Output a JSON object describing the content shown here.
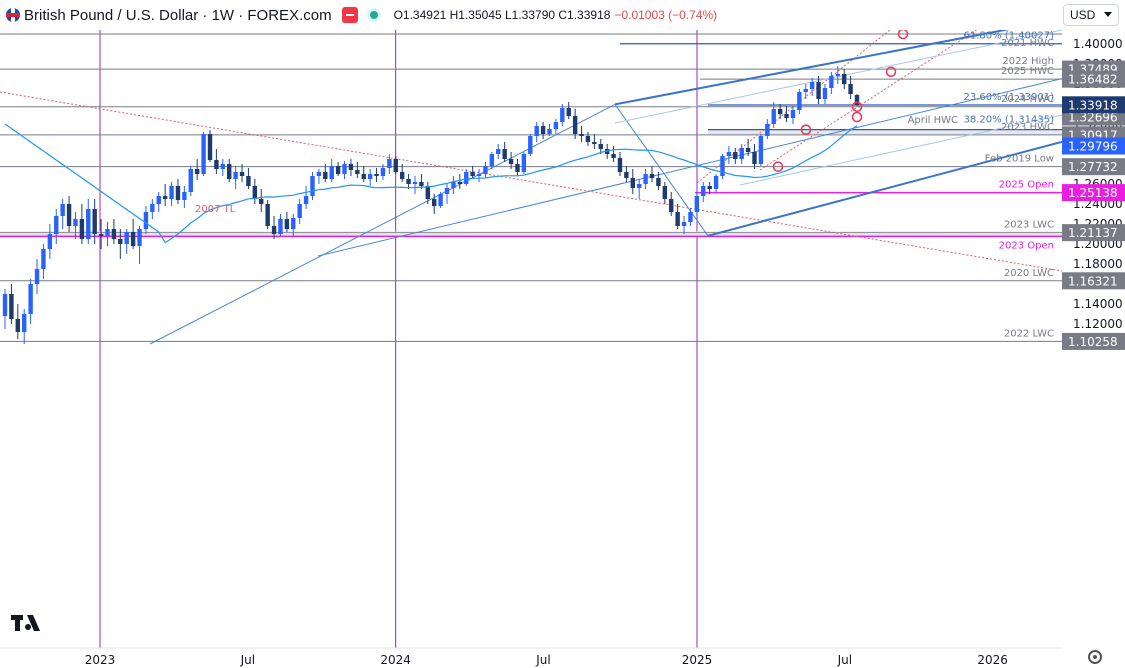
{
  "header": {
    "title": "British Pound / U.S. Dollar · 1W · FOREX.com",
    "ohlc": "O1.34921 H1.35045 L1.33790 C1.33918",
    "change": "−0.01003 (−0.74%)"
  },
  "currency_selector": "USD",
  "chart_data": {
    "type": "candlestick",
    "symbol": "GBPUSD",
    "timeframe": "1W",
    "y_axis": {
      "ylim": [
        1.098,
        1.416
      ],
      "ticks": [
        "1.40000",
        "1.38000",
        "1.36000",
        "1.34000",
        "1.32000",
        "1.30000",
        "1.28000",
        "1.26000",
        "1.24000",
        "1.22000",
        "1.20000",
        "1.18000",
        "1.16000",
        "1.14000",
        "1.12000"
      ],
      "tick_values": [
        1.4,
        1.38,
        1.36,
        1.34,
        1.32,
        1.3,
        1.28,
        1.26,
        1.24,
        1.22,
        1.2,
        1.18,
        1.16,
        1.14,
        1.12
      ]
    },
    "x_axis": {
      "labels": [
        {
          "text": "2023",
          "date": "2023-01-02"
        },
        {
          "text": "Jul",
          "date": "2023-07-03"
        },
        {
          "text": "2024",
          "date": "2024-01-01"
        },
        {
          "text": "Jul",
          "date": "2024-07-01"
        },
        {
          "text": "2025",
          "date": "2025-01-06"
        },
        {
          "text": "Jul",
          "date": "2025-07-07"
        },
        {
          "text": "2026",
          "date": "2026-01-05"
        }
      ]
    },
    "year_dividers": [
      "2023-01-02",
      "2024-01-01",
      "2025-01-06"
    ],
    "horizontal_levels": [
      {
        "label": "2021 HWC",
        "value": 1.41,
        "price_tag": ""
      },
      {
        "label": "61.80% (1.40027)",
        "value": 1.40027,
        "price_tag": ""
      },
      {
        "label": "2022 High",
        "value": 1.37489,
        "price_tag": "1.37489"
      },
      {
        "label": "2025 HWC",
        "value": 1.36482,
        "price_tag": "1.36482"
      },
      {
        "label": "23.60% (1.33901)",
        "value": 1.33901,
        "price_tag": ""
      },
      {
        "label": "2024 HWC",
        "value": 1.33722,
        "price_tag": "1.33722"
      },
      {
        "label": "April HWC",
        "value": 1.32696,
        "price_tag": "1.32696"
      },
      {
        "label": "38.20% (1.31435)",
        "value": 1.31435,
        "price_tag": ""
      },
      {
        "label": "2023 HWC",
        "value": 1.30917,
        "price_tag": "1.30917"
      },
      {
        "label": "Feb 2019 Low",
        "value": 1.27732,
        "price_tag": "1.27732"
      },
      {
        "label": "2025 Open",
        "value": 1.25138,
        "price_tag": "1.25138"
      },
      {
        "label": "2023 LWC",
        "value": 1.21137,
        "price_tag": "1.21137"
      },
      {
        "label": "2023 Open",
        "value": 1.2076,
        "price_tag": ""
      },
      {
        "label": "2020 LWC",
        "value": 1.16321,
        "price_tag": "1.16321"
      },
      {
        "label": "2022 LWC",
        "value": 1.10258,
        "price_tag": "1.10258"
      }
    ],
    "last_price": "1.33918",
    "ma_price": "1.29796",
    "trendline_label": "2007 TL",
    "colors": {
      "up": "#2962ff",
      "down": "#1e3a6e",
      "ma": "#2196f3",
      "magenta": "#e91ee0",
      "level": "#787b86",
      "channel": "#3b73c9",
      "trend": "#e05a6b",
      "purple": "#9c27b0"
    },
    "candles": [
      [
        1.128,
        1.155,
        1.115,
        1.15
      ],
      [
        1.15,
        1.16,
        1.12,
        1.125
      ],
      [
        1.125,
        1.14,
        1.105,
        1.112
      ],
      [
        1.112,
        1.135,
        1.1,
        1.13
      ],
      [
        1.13,
        1.165,
        1.12,
        1.16
      ],
      [
        1.16,
        1.185,
        1.15,
        1.175
      ],
      [
        1.175,
        1.2,
        1.165,
        1.195
      ],
      [
        1.195,
        1.22,
        1.185,
        1.21
      ],
      [
        1.21,
        1.235,
        1.2,
        1.228
      ],
      [
        1.228,
        1.245,
        1.215,
        1.24
      ],
      [
        1.24,
        1.248,
        1.212,
        1.218
      ],
      [
        1.218,
        1.232,
        1.205,
        1.225
      ],
      [
        1.225,
        1.24,
        1.2,
        1.205
      ],
      [
        1.205,
        1.245,
        1.2,
        1.235
      ],
      [
        1.235,
        1.245,
        1.2,
        1.21
      ],
      [
        1.21,
        1.225,
        1.195,
        1.208
      ],
      [
        1.208,
        1.222,
        1.198,
        1.215
      ],
      [
        1.215,
        1.225,
        1.2,
        1.205
      ],
      [
        1.205,
        1.215,
        1.185,
        1.2
      ],
      [
        1.2,
        1.215,
        1.19,
        1.212
      ],
      [
        1.212,
        1.225,
        1.195,
        1.198
      ],
      [
        1.198,
        1.218,
        1.18,
        1.215
      ],
      [
        1.215,
        1.238,
        1.21,
        1.232
      ],
      [
        1.232,
        1.245,
        1.225,
        1.24
      ],
      [
        1.24,
        1.252,
        1.232,
        1.248
      ],
      [
        1.248,
        1.26,
        1.238,
        1.245
      ],
      [
        1.245,
        1.262,
        1.238,
        1.258
      ],
      [
        1.258,
        1.265,
        1.24,
        1.244
      ],
      [
        1.244,
        1.258,
        1.236,
        1.252
      ],
      [
        1.252,
        1.278,
        1.248,
        1.275
      ],
      [
        1.275,
        1.285,
        1.264,
        1.27
      ],
      [
        1.27,
        1.312,
        1.268,
        1.31
      ],
      [
        1.31,
        1.314,
        1.282,
        1.284
      ],
      [
        1.284,
        1.295,
        1.27,
        1.275
      ],
      [
        1.275,
        1.285,
        1.268,
        1.28
      ],
      [
        1.28,
        1.285,
        1.262,
        1.265
      ],
      [
        1.265,
        1.278,
        1.255,
        1.272
      ],
      [
        1.272,
        1.28,
        1.262,
        1.268
      ],
      [
        1.268,
        1.276,
        1.255,
        1.258
      ],
      [
        1.258,
        1.265,
        1.24,
        1.245
      ],
      [
        1.245,
        1.255,
        1.232,
        1.24
      ],
      [
        1.24,
        1.244,
        1.215,
        1.218
      ],
      [
        1.218,
        1.228,
        1.205,
        1.21
      ],
      [
        1.21,
        1.23,
        1.208,
        1.225
      ],
      [
        1.225,
        1.232,
        1.212,
        1.215
      ],
      [
        1.215,
        1.23,
        1.208,
        1.226
      ],
      [
        1.226,
        1.245,
        1.22,
        1.24
      ],
      [
        1.24,
        1.258,
        1.235,
        1.248
      ],
      [
        1.248,
        1.272,
        1.244,
        1.268
      ],
      [
        1.268,
        1.275,
        1.26,
        1.272
      ],
      [
        1.272,
        1.28,
        1.262,
        1.265
      ],
      [
        1.265,
        1.285,
        1.262,
        1.278
      ],
      [
        1.278,
        1.282,
        1.268,
        1.27
      ],
      [
        1.27,
        1.283,
        1.265,
        1.28
      ],
      [
        1.28,
        1.285,
        1.268,
        1.274
      ],
      [
        1.274,
        1.282,
        1.266,
        1.27
      ],
      [
        1.27,
        1.278,
        1.262,
        1.265
      ],
      [
        1.265,
        1.275,
        1.258,
        1.27
      ],
      [
        1.27,
        1.276,
        1.262,
        1.268
      ],
      [
        1.268,
        1.28,
        1.264,
        1.276
      ],
      [
        1.276,
        1.29,
        1.27,
        1.285
      ],
      [
        1.285,
        1.288,
        1.27,
        1.272
      ],
      [
        1.272,
        1.28,
        1.262,
        1.265
      ],
      [
        1.265,
        1.27,
        1.255,
        1.26
      ],
      [
        1.26,
        1.268,
        1.25,
        1.262
      ],
      [
        1.262,
        1.27,
        1.255,
        1.258
      ],
      [
        1.258,
        1.262,
        1.24,
        1.245
      ],
      [
        1.245,
        1.25,
        1.23,
        1.238
      ],
      [
        1.238,
        1.252,
        1.236,
        1.25
      ],
      [
        1.25,
        1.26,
        1.24,
        1.256
      ],
      [
        1.256,
        1.268,
        1.25,
        1.262
      ],
      [
        1.262,
        1.27,
        1.255,
        1.26
      ],
      [
        1.26,
        1.275,
        1.258,
        1.272
      ],
      [
        1.272,
        1.278,
        1.265,
        1.268
      ],
      [
        1.268,
        1.275,
        1.262,
        1.27
      ],
      [
        1.27,
        1.282,
        1.266,
        1.278
      ],
      [
        1.278,
        1.292,
        1.275,
        1.29
      ],
      [
        1.29,
        1.3,
        1.285,
        1.295
      ],
      [
        1.295,
        1.302,
        1.282,
        1.285
      ],
      [
        1.285,
        1.292,
        1.275,
        1.28
      ],
      [
        1.28,
        1.285,
        1.268,
        1.272
      ],
      [
        1.272,
        1.292,
        1.27,
        1.29
      ],
      [
        1.29,
        1.31,
        1.288,
        1.308
      ],
      [
        1.308,
        1.322,
        1.302,
        1.318
      ],
      [
        1.318,
        1.322,
        1.305,
        1.31
      ],
      [
        1.31,
        1.32,
        1.308,
        1.315
      ],
      [
        1.315,
        1.325,
        1.31,
        1.322
      ],
      [
        1.322,
        1.34,
        1.318,
        1.336
      ],
      [
        1.336,
        1.342,
        1.325,
        1.328
      ],
      [
        1.328,
        1.335,
        1.305,
        1.31
      ],
      [
        1.31,
        1.318,
        1.302,
        1.308
      ],
      [
        1.308,
        1.312,
        1.298,
        1.302
      ],
      [
        1.302,
        1.31,
        1.295,
        1.3
      ],
      [
        1.3,
        1.305,
        1.29,
        1.295
      ],
      [
        1.295,
        1.3,
        1.285,
        1.29
      ],
      [
        1.29,
        1.298,
        1.282,
        1.286
      ],
      [
        1.286,
        1.292,
        1.268,
        1.272
      ],
      [
        1.272,
        1.278,
        1.262,
        1.266
      ],
      [
        1.266,
        1.275,
        1.25,
        1.256
      ],
      [
        1.256,
        1.265,
        1.245,
        1.26
      ],
      [
        1.26,
        1.275,
        1.255,
        1.27
      ],
      [
        1.27,
        1.278,
        1.262,
        1.266
      ],
      [
        1.266,
        1.272,
        1.254,
        1.258
      ],
      [
        1.258,
        1.262,
        1.24,
        1.245
      ],
      [
        1.245,
        1.252,
        1.228,
        1.232
      ],
      [
        1.232,
        1.24,
        1.215,
        1.218
      ],
      [
        1.218,
        1.228,
        1.21,
        1.222
      ],
      [
        1.222,
        1.236,
        1.218,
        1.232
      ],
      [
        1.232,
        1.252,
        1.228,
        1.248
      ],
      [
        1.248,
        1.262,
        1.242,
        1.258
      ],
      [
        1.258,
        1.262,
        1.25,
        1.255
      ],
      [
        1.255,
        1.27,
        1.252,
        1.268
      ],
      [
        1.268,
        1.29,
        1.265,
        1.288
      ],
      [
        1.288,
        1.298,
        1.28,
        1.292
      ],
      [
        1.292,
        1.296,
        1.28,
        1.285
      ],
      [
        1.285,
        1.3,
        1.28,
        1.296
      ],
      [
        1.296,
        1.305,
        1.288,
        1.292
      ],
      [
        1.292,
        1.3,
        1.275,
        1.28
      ],
      [
        1.28,
        1.31,
        1.278,
        1.308
      ],
      [
        1.308,
        1.325,
        1.305,
        1.32
      ],
      [
        1.32,
        1.342,
        1.316,
        1.335
      ],
      [
        1.335,
        1.34,
        1.325,
        1.33
      ],
      [
        1.33,
        1.338,
        1.322,
        1.326
      ],
      [
        1.326,
        1.338,
        1.32,
        1.334
      ],
      [
        1.334,
        1.355,
        1.33,
        1.352
      ],
      [
        1.352,
        1.36,
        1.345,
        1.355
      ],
      [
        1.355,
        1.366,
        1.348,
        1.362
      ],
      [
        1.362,
        1.368,
        1.34,
        1.345
      ],
      [
        1.345,
        1.36,
        1.34,
        1.356
      ],
      [
        1.356,
        1.372,
        1.35,
        1.368
      ],
      [
        1.368,
        1.378,
        1.36,
        1.37
      ],
      [
        1.37,
        1.375,
        1.355,
        1.36
      ],
      [
        1.36,
        1.368,
        1.345,
        1.35
      ],
      [
        1.349,
        1.35,
        1.338,
        1.339
      ]
    ]
  }
}
